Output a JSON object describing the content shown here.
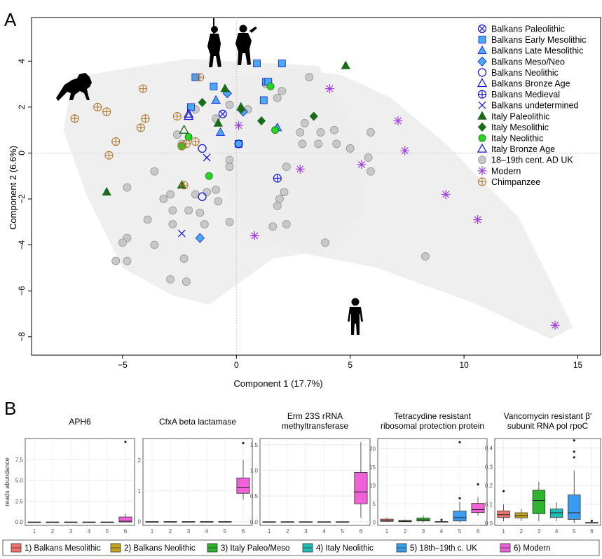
{
  "panel_labels": [
    "A",
    "B"
  ],
  "colors": {
    "balkans": "#1a1ad6",
    "balkans_fill": "#4aa8f0",
    "italy": "#1a6b1a",
    "italy_neo_fill": "#22d822",
    "uk_fill": "#c8c8c8",
    "uk_stroke": "#8a8a8a",
    "modern": "#a040e0",
    "chimp": "#b07830",
    "hull": "#ececec"
  },
  "legend_b": [
    "1) Balkans Mesolithic",
    "2) Balkans Neolithic",
    "3) Italy Paleo/Meso",
    "4) Italy Neolithic",
    "5) 18th–19th c. UK",
    "6) Modern"
  ],
  "legend_b_colors": [
    "#f2736e",
    "#c2a51f",
    "#2eb32e",
    "#22bdb6",
    "#3a9cf0",
    "#f060d8"
  ],
  "chart_data": [
    {
      "type": "scatter",
      "title": "",
      "xlabel": "Component 1 (17.7%)",
      "ylabel": "Component 2 (6.6%)",
      "xlim": [
        -9,
        16
      ],
      "ylim": [
        -8.8,
        5.9
      ],
      "x_ticks": [
        -5,
        0,
        5,
        10,
        15
      ],
      "y_ticks": [
        -8,
        -6,
        -4,
        -2,
        0,
        2,
        4
      ],
      "legend_position": "top-right",
      "series": [
        {
          "name": "Balkans Paleolithic",
          "marker": "circle-x",
          "points": [
            [
              -0.6,
              1.7
            ]
          ]
        },
        {
          "name": "Balkans Early Mesolithic",
          "marker": "square",
          "points": [
            [
              -1.8,
              3.3
            ],
            [
              -1.0,
              2.9
            ],
            [
              0.9,
              3.9
            ],
            [
              2.0,
              3.9
            ],
            [
              1.3,
              3.1
            ],
            [
              1.4,
              3.1
            ],
            [
              1.2,
              2.3
            ],
            [
              -2.0,
              2.0
            ],
            [
              0.1,
              0.4
            ]
          ]
        },
        {
          "name": "Balkans Late Mesolithic",
          "marker": "triangle",
          "points": [
            [
              -0.9,
              2.3
            ],
            [
              -0.7,
              0.9
            ],
            [
              1.8,
              1.1
            ]
          ]
        },
        {
          "name": "Balkans Meso/Neo",
          "marker": "diamond",
          "points": [
            [
              -0.4,
              2.6
            ],
            [
              0.3,
              1.8
            ],
            [
              -1.6,
              -3.7
            ]
          ]
        },
        {
          "name": "Balkans Neolithic",
          "marker": "circle-open",
          "points": [
            [
              -1.5,
              0.2
            ],
            [
              0.1,
              0.4
            ],
            [
              -1.5,
              -1.9
            ]
          ]
        },
        {
          "name": "Balkans Bronze Age",
          "marker": "triangle-open",
          "points": [
            [
              -2.1,
              1.7
            ],
            [
              -2.1,
              1.6
            ]
          ]
        },
        {
          "name": "Balkans Medieval",
          "marker": "circle-plus",
          "points": [
            [
              1.8,
              -1.1
            ]
          ]
        },
        {
          "name": "Balkans undetermined",
          "marker": "x",
          "points": [
            [
              -1.3,
              -0.2
            ],
            [
              -2.4,
              -3.5
            ]
          ]
        },
        {
          "name": "Italy Paleolithic",
          "marker": "triangle-filled",
          "points": [
            [
              4.8,
              3.8
            ],
            [
              -0.5,
              2.8
            ],
            [
              -0.8,
              1.3
            ],
            [
              0.2,
              2.0
            ],
            [
              -5.7,
              -1.7
            ],
            [
              -2.4,
              -1.4
            ]
          ]
        },
        {
          "name": "Italy Mesolithic",
          "marker": "diamond-filled",
          "points": [
            [
              -1.5,
              2.2
            ],
            [
              0.2,
              1.9
            ],
            [
              1.1,
              1.4
            ],
            [
              3.4,
              1.6
            ]
          ]
        },
        {
          "name": "Italy Neolithic",
          "marker": "circle-filled",
          "points": [
            [
              1.5,
              2.9
            ],
            [
              1.7,
              1.0
            ],
            [
              -2.1,
              0.7
            ],
            [
              -2.4,
              0.3
            ],
            [
              -1.2,
              -1.0
            ]
          ]
        },
        {
          "name": "Italy Bronze Age",
          "marker": "triangle-open",
          "points": [
            [
              -2.3,
              1.0
            ]
          ]
        },
        {
          "name": "18–19th cent. AD UK",
          "marker": "circle-grey",
          "points": [
            [
              3.2,
              3.3
            ],
            [
              2.0,
              2.7
            ],
            [
              1.8,
              2.4
            ],
            [
              1.3,
              3.0
            ],
            [
              -0.3,
              2.1
            ],
            [
              0.5,
              1.9
            ],
            [
              -1.8,
              1.9
            ],
            [
              -0.9,
              1.5
            ],
            [
              -2.6,
              0.8
            ],
            [
              -2.4,
              0.4
            ],
            [
              -0.3,
              -0.3
            ],
            [
              -0.3,
              -0.6
            ],
            [
              2.2,
              -0.6
            ],
            [
              2.8,
              0.9
            ],
            [
              3.0,
              1.3
            ],
            [
              2.9,
              0.4
            ],
            [
              3.6,
              0.4
            ],
            [
              3.7,
              0.9
            ],
            [
              4.3,
              1.0
            ],
            [
              4.4,
              0.4
            ],
            [
              5.0,
              0.2
            ],
            [
              5.9,
              0.9
            ],
            [
              5.8,
              -0.2
            ],
            [
              5.9,
              -0.8
            ],
            [
              2.1,
              -1.7
            ],
            [
              1.9,
              -2.0
            ],
            [
              1.8,
              -2.3
            ],
            [
              -0.9,
              -1.6
            ],
            [
              -1.8,
              -1.8
            ],
            [
              -2.1,
              -2.5
            ],
            [
              -2.8,
              -2.5
            ],
            [
              -2.9,
              -1.8
            ],
            [
              -3.2,
              -2.0
            ],
            [
              -3.6,
              -0.8
            ],
            [
              -4.8,
              -1.5
            ],
            [
              -1.3,
              -1.7
            ],
            [
              -0.8,
              -2.1
            ],
            [
              -1.6,
              -2.6
            ],
            [
              -1.4,
              -3.1
            ],
            [
              -0.3,
              -3.0
            ],
            [
              1.6,
              -3.2
            ],
            [
              2.2,
              -3.1
            ],
            [
              3.9,
              -3.9
            ],
            [
              8.3,
              -4.5
            ],
            [
              -2.8,
              -3.1
            ],
            [
              -3.9,
              -2.9
            ],
            [
              -3.6,
              -4.0
            ],
            [
              -4.8,
              -3.7
            ],
            [
              -5.0,
              -3.9
            ],
            [
              -5.3,
              -4.7
            ],
            [
              -4.8,
              -4.7
            ],
            [
              -2.3,
              -4.6
            ],
            [
              -2.9,
              -5.5
            ],
            [
              -2.2,
              -5.6
            ]
          ]
        },
        {
          "name": "Modern",
          "marker": "asterisk",
          "points": [
            [
              4.1,
              2.8
            ],
            [
              7.1,
              1.4
            ],
            [
              0.1,
              1.2
            ],
            [
              7.4,
              0.1
            ],
            [
              5.5,
              -0.5
            ],
            [
              2.8,
              -0.7
            ],
            [
              9.2,
              -1.8
            ],
            [
              10.6,
              -2.9
            ],
            [
              0.8,
              -3.6
            ],
            [
              14.0,
              -7.5
            ]
          ]
        },
        {
          "name": "Chimpanzee",
          "marker": "circle-plus-chimp",
          "points": [
            [
              -4.1,
              2.8
            ],
            [
              -1.6,
              3.3
            ],
            [
              -6.1,
              2.0
            ],
            [
              -5.7,
              1.8
            ],
            [
              -7.1,
              1.5
            ],
            [
              -4.0,
              1.5
            ],
            [
              -4.2,
              1.1
            ],
            [
              -2.6,
              1.6
            ],
            [
              -5.3,
              0.5
            ],
            [
              -5.6,
              -0.1
            ],
            [
              -2.2,
              0.4
            ],
            [
              -2.4,
              0.3
            ],
            [
              -1.8,
              0.5
            ],
            [
              -2.3,
              -1.4
            ]
          ]
        }
      ]
    },
    {
      "type": "box",
      "title": "APH6",
      "ylabel": "reads abundance",
      "categories": [
        "1",
        "2",
        "3",
        "4",
        "5",
        "6"
      ],
      "ylim": [
        -0.4,
        10.0
      ],
      "y_ticks": [
        0.0,
        2.5,
        5.0,
        7.5
      ],
      "y_tick_labels": [
        "0.0",
        "2.5",
        "5.0",
        "7.5"
      ],
      "boxes": [
        {
          "q1": 0,
          "median": 0,
          "q3": 0,
          "low": 0,
          "high": 0,
          "outliers": []
        },
        {
          "q1": 0,
          "median": 0,
          "q3": 0,
          "low": 0,
          "high": 0,
          "outliers": []
        },
        {
          "q1": 0,
          "median": 0,
          "q3": 0,
          "low": 0,
          "high": 0,
          "outliers": []
        },
        {
          "q1": 0,
          "median": 0,
          "q3": 0,
          "low": 0,
          "high": 0,
          "outliers": []
        },
        {
          "q1": 0,
          "median": 0,
          "q3": 0,
          "low": 0,
          "high": 0,
          "outliers": []
        },
        {
          "q1": 0.0,
          "median": 0.1,
          "q3": 0.6,
          "low": 0,
          "high": 1.0,
          "outliers": [
            9.6
          ]
        }
      ]
    },
    {
      "type": "box",
      "title": "CfxA beta lactamase",
      "ylabel": "",
      "categories": [
        "1",
        "2",
        "3",
        "4",
        "5",
        "6"
      ],
      "ylim": [
        -0.12,
        2.7
      ],
      "y_ticks": [
        0,
        1,
        2
      ],
      "y_tick_labels": [
        "0",
        "1",
        "2"
      ],
      "boxes": [
        {
          "q1": 0,
          "median": 0,
          "q3": 0,
          "low": 0,
          "high": 0,
          "outliers": []
        },
        {
          "q1": 0,
          "median": 0,
          "q3": 0,
          "low": 0,
          "high": 0,
          "outliers": []
        },
        {
          "q1": 0,
          "median": 0,
          "q3": 0,
          "low": 0,
          "high": 0,
          "outliers": []
        },
        {
          "q1": 0,
          "median": 0,
          "q3": 0,
          "low": 0,
          "high": 0,
          "outliers": []
        },
        {
          "q1": 0,
          "median": 0,
          "q3": 0,
          "low": 0,
          "high": 0,
          "outliers": []
        },
        {
          "q1": 0.92,
          "median": 1.12,
          "q3": 1.42,
          "low": 0.72,
          "high": 2.0,
          "outliers": [
            2.55
          ]
        }
      ]
    },
    {
      "type": "box",
      "title": "Erm 23S rRNA methyltransferase",
      "ylabel": "",
      "categories": [
        "1",
        "2",
        "3",
        "4",
        "5",
        "6"
      ],
      "ylim": [
        -0.07,
        1.62
      ],
      "y_ticks": [
        0.0,
        0.5,
        1.0,
        1.5
      ],
      "y_tick_labels": [
        "0.0",
        "0.5",
        "1.0",
        "1.5"
      ],
      "boxes": [
        {
          "q1": 0,
          "median": 0,
          "q3": 0,
          "low": 0,
          "high": 0,
          "outliers": []
        },
        {
          "q1": 0,
          "median": 0,
          "q3": 0,
          "low": 0,
          "high": 0,
          "outliers": []
        },
        {
          "q1": 0,
          "median": 0,
          "q3": 0,
          "low": 0,
          "high": 0,
          "outliers": []
        },
        {
          "q1": 0,
          "median": 0,
          "q3": 0,
          "low": 0,
          "high": 0,
          "outliers": []
        },
        {
          "q1": 0,
          "median": 0,
          "q3": 0,
          "low": 0,
          "high": 0,
          "outliers": []
        },
        {
          "q1": 0.35,
          "median": 0.58,
          "q3": 0.96,
          "low": 0.08,
          "high": 1.55,
          "outliers": []
        }
      ]
    },
    {
      "type": "box",
      "title": "Tetracydine resistant ribosomal protection protein",
      "ylabel": "",
      "categories": [
        "1",
        "2",
        "3",
        "4",
        "5",
        "6"
      ],
      "ylim": [
        -0.9,
        22.8
      ],
      "y_ticks": [
        0,
        5,
        10,
        15,
        20
      ],
      "y_tick_labels": [
        "0",
        "5",
        "10",
        "15",
        "20"
      ],
      "boxes": [
        {
          "q1": 0.2,
          "median": 0.4,
          "q3": 0.8,
          "low": 0.0,
          "high": 1.2,
          "outliers": []
        },
        {
          "q1": 0.1,
          "median": 0.25,
          "q3": 0.45,
          "low": 0.0,
          "high": 0.7,
          "outliers": []
        },
        {
          "q1": 0.3,
          "median": 0.6,
          "q3": 1.1,
          "low": 0.0,
          "high": 1.8,
          "outliers": []
        },
        {
          "q1": 0.0,
          "median": 0.05,
          "q3": 0.15,
          "low": 0.0,
          "high": 0.3,
          "outliers": [
            0.6
          ]
        },
        {
          "q1": 0.3,
          "median": 1.2,
          "q3": 3.0,
          "low": 0.0,
          "high": 5.5,
          "outliers": [
            6.5,
            21.8
          ]
        },
        {
          "q1": 2.6,
          "median": 3.4,
          "q3": 5.1,
          "low": 1.8,
          "high": 6.8,
          "outliers": [
            10.3
          ]
        }
      ]
    },
    {
      "type": "box",
      "title": "Vancomycin resistant β' subunit RNA pol rpoC",
      "ylabel": "",
      "categories": [
        "1",
        "2",
        "3",
        "4",
        "5",
        "6"
      ],
      "ylim": [
        -0.012,
        0.45
      ],
      "y_ticks": [
        0.0,
        0.1,
        0.2,
        0.3,
        0.4
      ],
      "y_tick_labels": [
        "0.0",
        "0.1",
        "0.2",
        "0.3",
        "0.4"
      ],
      "boxes": [
        {
          "q1": 0.03,
          "median": 0.045,
          "q3": 0.065,
          "low": 0.01,
          "high": 0.1,
          "outliers": [
            0.17
          ]
        },
        {
          "q1": 0.028,
          "median": 0.04,
          "q3": 0.055,
          "low": 0.01,
          "high": 0.075,
          "outliers": []
        },
        {
          "q1": 0.05,
          "median": 0.12,
          "q3": 0.175,
          "low": 0.01,
          "high": 0.22,
          "outliers": []
        },
        {
          "q1": 0.03,
          "median": 0.055,
          "q3": 0.075,
          "low": 0.01,
          "high": 0.11,
          "outliers": []
        },
        {
          "q1": 0.02,
          "median": 0.055,
          "q3": 0.15,
          "low": 0.0,
          "high": 0.28,
          "outliers": [
            0.35,
            0.38,
            0.44
          ]
        },
        {
          "q1": 0.0,
          "median": 0.002,
          "q3": 0.004,
          "low": 0.0,
          "high": 0.006,
          "outliers": [
            0.012
          ]
        }
      ]
    }
  ]
}
